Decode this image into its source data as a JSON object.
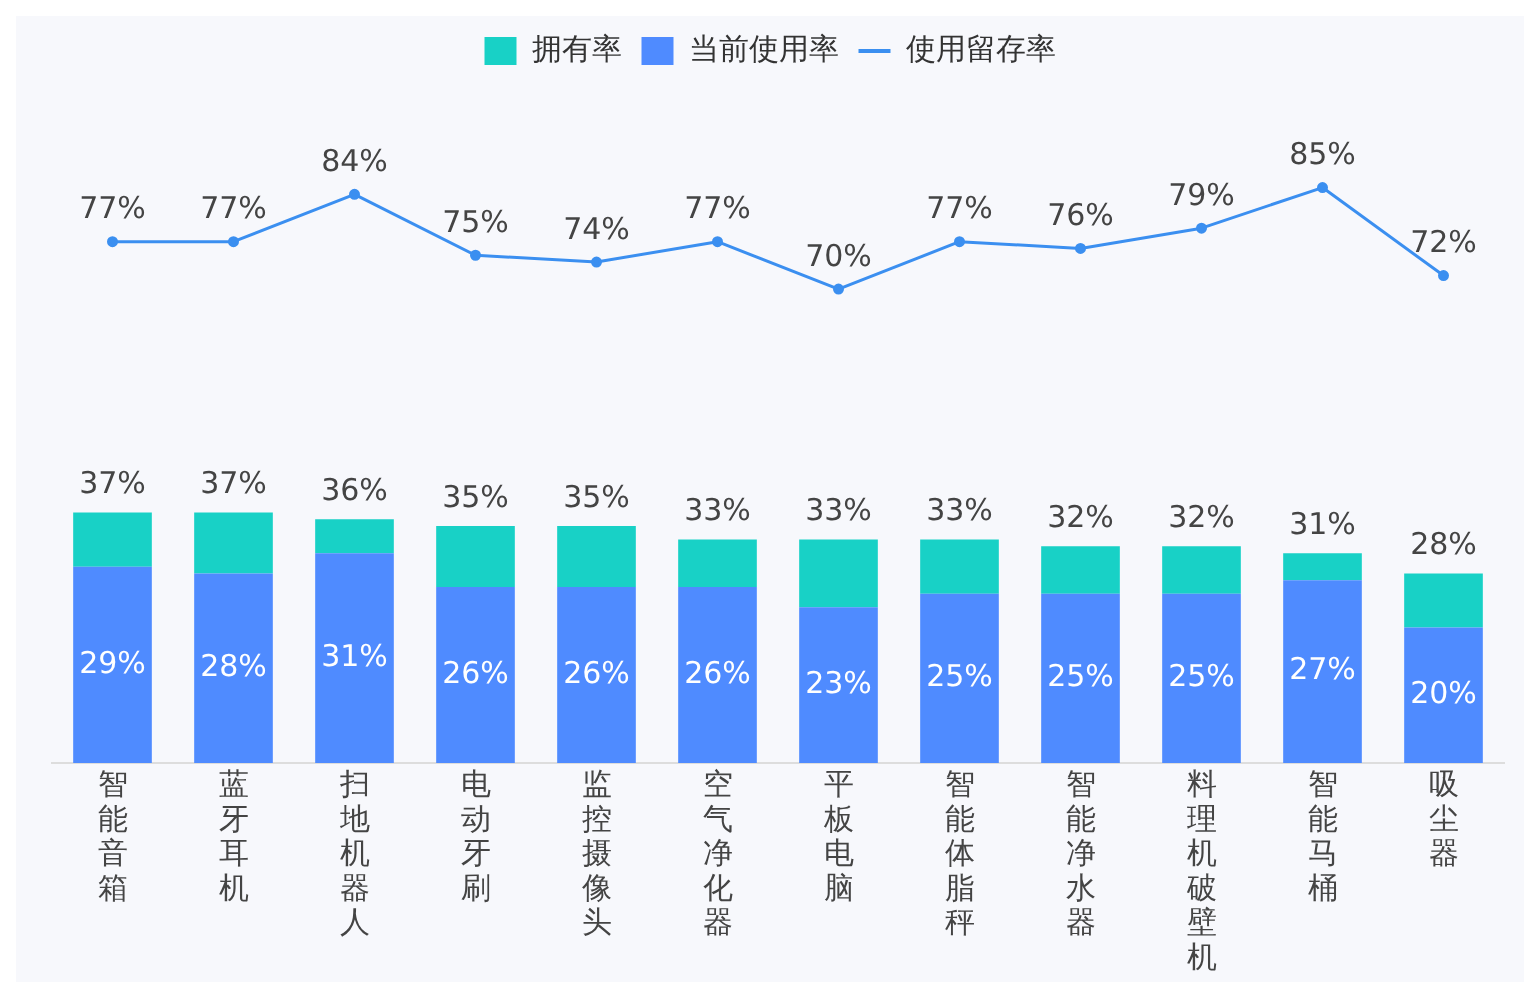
{
  "chart_data": {
    "type": "bar",
    "stacked": true,
    "categories": [
      "智能音箱",
      "蓝牙耳机",
      "扫地机器人",
      "电动牙刷",
      "监控摄像头",
      "空气净化器",
      "平板电脑",
      "智能体脂秤",
      "智能净水器",
      "料理机破壁机",
      "智能马桶",
      "吸尘器"
    ],
    "series": [
      {
        "name": "当前使用率",
        "color": "#4f8bff",
        "values": [
          29,
          28,
          31,
          26,
          26,
          26,
          23,
          25,
          25,
          25,
          27,
          20
        ],
        "value_labels": [
          "29%",
          "28%",
          "31%",
          "26%",
          "26%",
          "26%",
          "23%",
          "25%",
          "25%",
          "25%",
          "27%",
          "20%"
        ]
      },
      {
        "name": "拥有率",
        "color": "#18d1c6",
        "values": [
          8,
          9,
          5,
          9,
          9,
          7,
          10,
          8,
          7,
          7,
          4,
          8
        ]
      },
      {
        "name": "使用留存率",
        "type": "line",
        "color": "#3b8ff0",
        "values": [
          77,
          77,
          84,
          75,
          74,
          77,
          70,
          77,
          76,
          79,
          85,
          72
        ],
        "value_labels": [
          "77%",
          "77%",
          "84%",
          "75%",
          "74%",
          "77%",
          "70%",
          "77%",
          "76%",
          "79%",
          "85%",
          "72%"
        ]
      }
    ],
    "totals": [
      "37%",
      "37%",
      "36%",
      "35%",
      "35%",
      "33%",
      "33%",
      "33%",
      "32%",
      "32%",
      "31%",
      "28%"
    ],
    "tick_labels": "x",
    "grid": false,
    "legend": "top",
    "marker": "circle",
    "line_style": "solid"
  }
}
